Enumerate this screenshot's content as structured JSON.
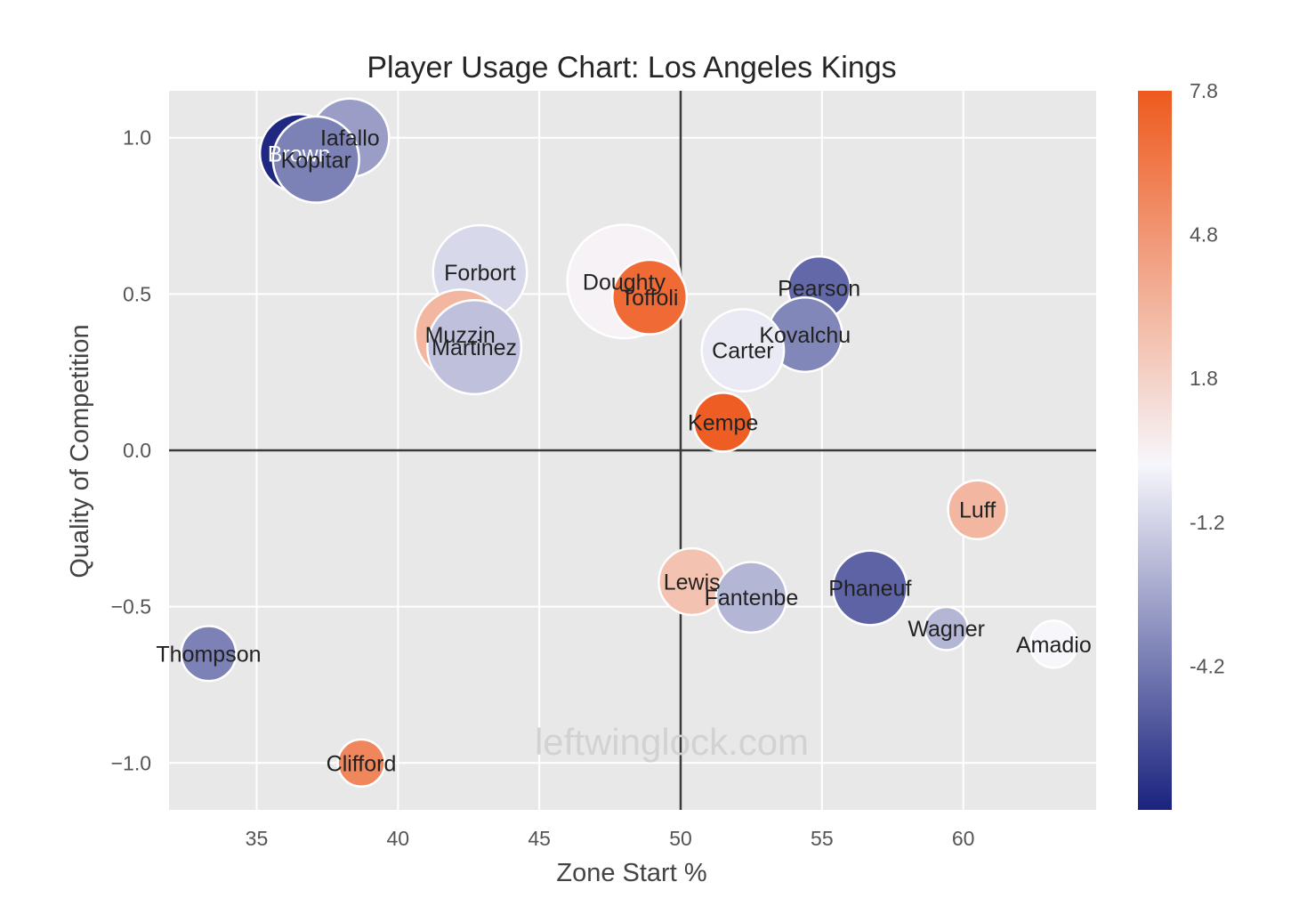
{
  "chart_data": {
    "type": "scatter",
    "title": "Player Usage Chart: Los Angeles Kings",
    "xlabel": "Zone Start %",
    "ylabel": "Quality of Competition",
    "xlim": [
      31.9,
      64.7
    ],
    "ylim": [
      -1.15,
      1.15
    ],
    "x_ticks": [
      35,
      40,
      45,
      50,
      55,
      60
    ],
    "x_tick_labels": [
      "35",
      "40",
      "45",
      "50",
      "55",
      "60"
    ],
    "y_ticks": [
      1.0,
      0.5,
      0.0,
      -0.5,
      -1.0
    ],
    "y_tick_labels": [
      "1.0",
      "0.5",
      "0.0",
      "−0.5",
      "−1.0"
    ],
    "grid": true,
    "reference_lines": {
      "x": 50,
      "y": 0
    },
    "watermark": "leftwinglock.com",
    "colorbar": {
      "ticks": [
        7.8,
        4.8,
        1.8,
        -1.2,
        -4.2
      ],
      "tick_labels": [
        "7.8",
        "4.8",
        "1.8",
        "-1.2",
        "-4.2"
      ],
      "range": [
        -7.2,
        7.8
      ],
      "colors": {
        "low": "#1a237e",
        "mid": "#f6f6fb",
        "high": "#ee5a1e"
      }
    },
    "points": [
      {
        "name": "Brown",
        "x": 36.5,
        "y": 0.95,
        "size": 1.0,
        "value": -7.0
      },
      {
        "name": "Iafallo",
        "x": 38.3,
        "y": 1.0,
        "size": 1.0,
        "value": -3.0
      },
      {
        "name": "Kopitar",
        "x": 37.1,
        "y": 0.93,
        "size": 1.1,
        "value": -4.0
      },
      {
        "name": "Forbort",
        "x": 42.9,
        "y": 0.57,
        "size": 1.2,
        "value": -1.0
      },
      {
        "name": "Muzzin",
        "x": 42.2,
        "y": 0.37,
        "size": 1.15,
        "value": 3.2
      },
      {
        "name": "Martinez",
        "x": 42.7,
        "y": 0.33,
        "size": 1.2,
        "value": -1.8
      },
      {
        "name": "Doughty",
        "x": 48.0,
        "y": 0.54,
        "size": 1.45,
        "value": 0.2
      },
      {
        "name": "Toffoli",
        "x": 48.9,
        "y": 0.49,
        "size": 0.95,
        "value": 7.0
      },
      {
        "name": "Pearson",
        "x": 54.9,
        "y": 0.52,
        "size": 0.8,
        "value": -4.8
      },
      {
        "name": "Kovalchu",
        "x": 54.4,
        "y": 0.37,
        "size": 0.95,
        "value": -3.8
      },
      {
        "name": "Carter",
        "x": 52.2,
        "y": 0.32,
        "size": 1.05,
        "value": -0.4
      },
      {
        "name": "Kempe",
        "x": 51.5,
        "y": 0.09,
        "size": 0.75,
        "value": 7.6
      },
      {
        "name": "Luff",
        "x": 60.5,
        "y": -0.19,
        "size": 0.75,
        "value": 3.2
      },
      {
        "name": "Lewis",
        "x": 50.4,
        "y": -0.42,
        "size": 0.85,
        "value": 2.6
      },
      {
        "name": "Fantenbe",
        "x": 52.5,
        "y": -0.47,
        "size": 0.9,
        "value": -2.2
      },
      {
        "name": "Phaneuf",
        "x": 56.7,
        "y": -0.44,
        "size": 0.95,
        "value": -5.0
      },
      {
        "name": "Wagner",
        "x": 59.4,
        "y": -0.57,
        "size": 0.55,
        "value": -2.2
      },
      {
        "name": "Amadio",
        "x": 63.2,
        "y": -0.62,
        "size": 0.6,
        "value": 0.0
      },
      {
        "name": "Thompson",
        "x": 33.3,
        "y": -0.65,
        "size": 0.7,
        "value": -4.0
      },
      {
        "name": "Clifford",
        "x": 38.7,
        "y": -1.0,
        "size": 0.6,
        "value": 5.6
      }
    ]
  }
}
